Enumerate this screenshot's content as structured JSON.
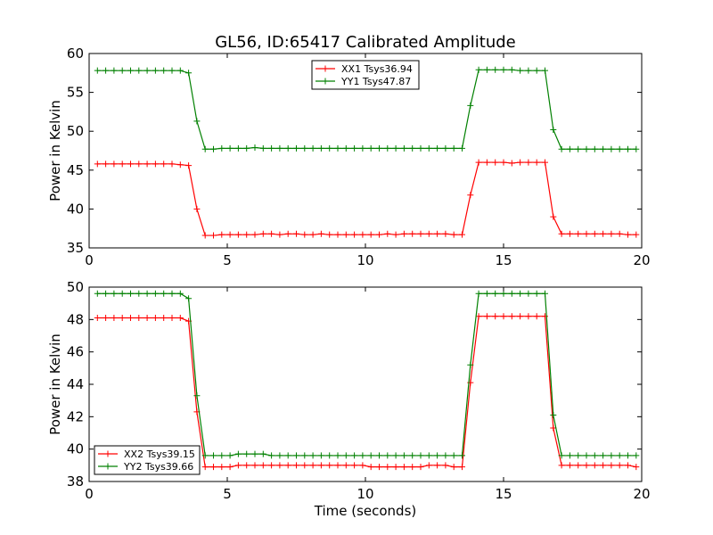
{
  "figure": {
    "title": "GL56, ID:65417 Calibrated Amplitude"
  },
  "chart_data": [
    {
      "type": "line",
      "title": "GL56, ID:65417 Calibrated Amplitude",
      "xlabel": "",
      "ylabel": "Power in Kelvin",
      "xlim": [
        0,
        20
      ],
      "ylim": [
        35,
        60
      ],
      "xticks": [
        0,
        5,
        10,
        15,
        20
      ],
      "yticks": [
        35,
        40,
        45,
        50,
        55,
        60
      ],
      "grid": false,
      "legend_position": "top-center",
      "x": [
        0.3,
        0.6,
        0.9,
        1.2,
        1.5,
        1.8,
        2.1,
        2.4,
        2.7,
        3.0,
        3.3,
        3.6,
        3.9,
        4.2,
        4.5,
        4.8,
        5.1,
        5.4,
        5.7,
        6.0,
        6.3,
        6.6,
        6.9,
        7.2,
        7.5,
        7.8,
        8.1,
        8.4,
        8.7,
        9.0,
        9.3,
        9.6,
        9.9,
        10.2,
        10.5,
        10.8,
        11.1,
        11.4,
        11.7,
        12.0,
        12.3,
        12.6,
        12.9,
        13.2,
        13.5,
        13.8,
        14.1,
        14.4,
        14.7,
        15.0,
        15.3,
        15.6,
        15.9,
        16.2,
        16.5,
        16.8,
        17.1,
        17.4,
        17.7,
        18.0,
        18.3,
        18.6,
        18.9,
        19.2,
        19.5,
        19.8
      ],
      "series": [
        {
          "name": "XX1 Tsys36.94",
          "color": "#ff0000",
          "values": [
            45.8,
            45.8,
            45.8,
            45.8,
            45.8,
            45.8,
            45.8,
            45.8,
            45.8,
            45.8,
            45.7,
            45.6,
            40.0,
            36.6,
            36.6,
            36.7,
            36.7,
            36.7,
            36.7,
            36.7,
            36.8,
            36.8,
            36.7,
            36.8,
            36.8,
            36.7,
            36.7,
            36.8,
            36.7,
            36.7,
            36.7,
            36.7,
            36.7,
            36.7,
            36.7,
            36.8,
            36.7,
            36.8,
            36.8,
            36.8,
            36.8,
            36.8,
            36.8,
            36.7,
            36.7,
            41.8,
            46.0,
            46.0,
            46.0,
            46.0,
            45.9,
            46.0,
            46.0,
            46.0,
            46.0,
            39.0,
            36.8,
            36.8,
            36.8,
            36.8,
            36.8,
            36.8,
            36.8,
            36.8,
            36.7,
            36.7
          ]
        },
        {
          "name": "YY1 Tsys47.87",
          "color": "#008000",
          "values": [
            57.8,
            57.8,
            57.8,
            57.8,
            57.8,
            57.8,
            57.8,
            57.8,
            57.8,
            57.8,
            57.8,
            57.5,
            51.3,
            47.7,
            47.7,
            47.8,
            47.8,
            47.8,
            47.8,
            47.9,
            47.8,
            47.8,
            47.8,
            47.8,
            47.8,
            47.8,
            47.8,
            47.8,
            47.8,
            47.8,
            47.8,
            47.8,
            47.8,
            47.8,
            47.8,
            47.8,
            47.8,
            47.8,
            47.8,
            47.8,
            47.8,
            47.8,
            47.8,
            47.8,
            47.8,
            53.3,
            57.9,
            57.9,
            57.9,
            57.9,
            57.9,
            57.8,
            57.8,
            57.8,
            57.8,
            50.2,
            47.7,
            47.7,
            47.7,
            47.7,
            47.7,
            47.7,
            47.7,
            47.7,
            47.7,
            47.7
          ]
        }
      ]
    },
    {
      "type": "line",
      "title": "",
      "xlabel": "Time (seconds)",
      "ylabel": "Power in Kelvin",
      "xlim": [
        0,
        20
      ],
      "ylim": [
        38,
        50
      ],
      "xticks": [
        0,
        5,
        10,
        15,
        20
      ],
      "yticks": [
        38,
        40,
        42,
        44,
        46,
        48,
        50
      ],
      "grid": false,
      "legend_position": "bottom-left",
      "x": [
        0.3,
        0.6,
        0.9,
        1.2,
        1.5,
        1.8,
        2.1,
        2.4,
        2.7,
        3.0,
        3.3,
        3.6,
        3.9,
        4.2,
        4.5,
        4.8,
        5.1,
        5.4,
        5.7,
        6.0,
        6.3,
        6.6,
        6.9,
        7.2,
        7.5,
        7.8,
        8.1,
        8.4,
        8.7,
        9.0,
        9.3,
        9.6,
        9.9,
        10.2,
        10.5,
        10.8,
        11.1,
        11.4,
        11.7,
        12.0,
        12.3,
        12.6,
        12.9,
        13.2,
        13.5,
        13.8,
        14.1,
        14.4,
        14.7,
        15.0,
        15.3,
        15.6,
        15.9,
        16.2,
        16.5,
        16.8,
        17.1,
        17.4,
        17.7,
        18.0,
        18.3,
        18.6,
        18.9,
        19.2,
        19.5,
        19.8
      ],
      "series": [
        {
          "name": "XX2 Tsys39.15",
          "color": "#ff0000",
          "values": [
            48.1,
            48.1,
            48.1,
            48.1,
            48.1,
            48.1,
            48.1,
            48.1,
            48.1,
            48.1,
            48.1,
            47.9,
            42.3,
            38.9,
            38.9,
            38.9,
            38.9,
            39.0,
            39.0,
            39.0,
            39.0,
            39.0,
            39.0,
            39.0,
            39.0,
            39.0,
            39.0,
            39.0,
            39.0,
            39.0,
            39.0,
            39.0,
            39.0,
            38.9,
            38.9,
            38.9,
            38.9,
            38.9,
            38.9,
            38.9,
            39.0,
            39.0,
            39.0,
            38.9,
            38.9,
            44.1,
            48.2,
            48.2,
            48.2,
            48.2,
            48.2,
            48.2,
            48.2,
            48.2,
            48.2,
            41.3,
            39.0,
            39.0,
            39.0,
            39.0,
            39.0,
            39.0,
            39.0,
            39.0,
            39.0,
            38.9
          ]
        },
        {
          "name": "YY2 Tsys39.66",
          "color": "#008000",
          "values": [
            49.6,
            49.6,
            49.6,
            49.6,
            49.6,
            49.6,
            49.6,
            49.6,
            49.6,
            49.6,
            49.6,
            49.3,
            43.3,
            39.6,
            39.6,
            39.6,
            39.6,
            39.7,
            39.7,
            39.7,
            39.7,
            39.6,
            39.6,
            39.6,
            39.6,
            39.6,
            39.6,
            39.6,
            39.6,
            39.6,
            39.6,
            39.6,
            39.6,
            39.6,
            39.6,
            39.6,
            39.6,
            39.6,
            39.6,
            39.6,
            39.6,
            39.6,
            39.6,
            39.6,
            39.6,
            45.2,
            49.6,
            49.6,
            49.6,
            49.6,
            49.6,
            49.6,
            49.6,
            49.6,
            49.6,
            42.1,
            39.6,
            39.6,
            39.6,
            39.6,
            39.6,
            39.6,
            39.6,
            39.6,
            39.6,
            39.6
          ]
        }
      ]
    }
  ]
}
